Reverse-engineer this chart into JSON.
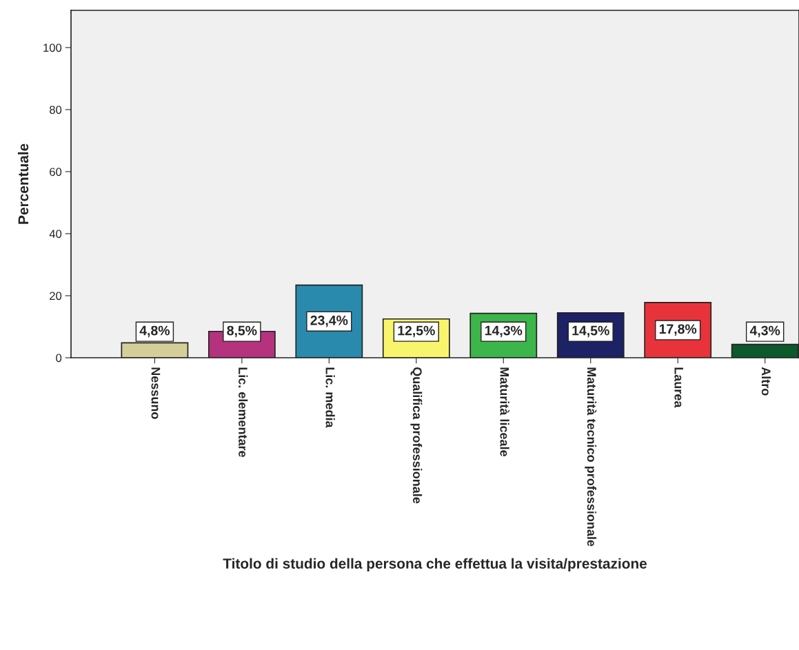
{
  "chart_data": {
    "type": "bar",
    "xlabel": "Titolo di studio della persona che effettua la visita/prestazione",
    "ylabel": "Percentuale",
    "categories": [
      "Nessuno",
      "Lic. elementare",
      "Lic. media",
      "Qualifica professionale",
      "Maturità liceale",
      "Maturità tecnico professionale",
      "Laurea",
      "Altro"
    ],
    "values": [
      4.8,
      8.5,
      23.4,
      12.5,
      14.3,
      14.5,
      17.8,
      4.3
    ],
    "colors": [
      "#d4cf98",
      "#b5327e",
      "#2a8aad",
      "#f8f56c",
      "#3cb54a",
      "#1d2165",
      "#e8333b",
      "#0c5a2c"
    ],
    "value_labels": [
      "4,8%",
      "8,5%",
      "23,4%",
      "12,5%",
      "14,3%",
      "14,5%",
      "17,8%",
      "4,3%"
    ],
    "ylim": [
      0,
      112
    ],
    "yticks": [
      0,
      20,
      40,
      60,
      80,
      100
    ],
    "grid": false,
    "legend": false
  }
}
